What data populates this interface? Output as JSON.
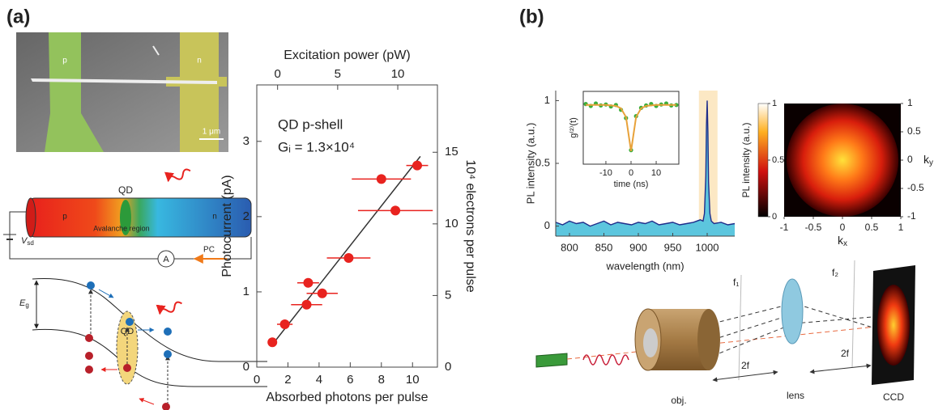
{
  "panels": {
    "a": "(a)",
    "b": "(b)"
  },
  "sem": {
    "p": "p",
    "n": "n",
    "scale": "1 μm"
  },
  "device": {
    "qd": "QD",
    "p": "p",
    "n": "n",
    "region": "Avalanche region",
    "v": "V",
    "v_sub": "sd",
    "ammeter": "A",
    "pc": "PC"
  },
  "band": {
    "e": "E",
    "e_sub": "g",
    "qd": "QD"
  },
  "optics": {
    "f1": "f₁",
    "f2": "f₂",
    "d1": "2f",
    "d2": "2f",
    "obj": "obj.",
    "lens": "lens",
    "ccd": "CCD"
  },
  "chart_data": [
    {
      "type": "scatter",
      "xlabel": "Absorbed photons per pulse",
      "x2label": "Excitation power (pW)",
      "ylabel": "Photocurrent (pA)",
      "y2label": "10⁴ electrons per pulse",
      "annotations": [
        "QD p-shell",
        "Gᵢ = 1.3×10⁴"
      ],
      "xlim": [
        0,
        11.6
      ],
      "xticks": [
        0,
        2,
        4,
        6,
        8,
        10
      ],
      "x2lim": [
        -1.73,
        13.3
      ],
      "x2ticks": [
        0,
        5,
        10
      ],
      "ylim": [
        0,
        3.75
      ],
      "yticks": [
        0,
        1,
        2,
        3
      ],
      "y2lim": [
        0,
        19.7
      ],
      "y2ticks": [
        0,
        5,
        10,
        15
      ],
      "x": [
        1.0,
        1.8,
        3.2,
        3.3,
        4.2,
        5.9,
        8.0,
        8.9,
        10.3
      ],
      "values": [
        0.33,
        0.57,
        0.83,
        1.12,
        0.98,
        1.45,
        2.5,
        2.08,
        2.68
      ],
      "xerr": [
        0.1,
        0.5,
        1.0,
        0.7,
        1.0,
        1.4,
        1.9,
        2.4,
        0.7
      ],
      "color": "#e8231f",
      "fit": {
        "x": [
          1.0,
          10.5
        ],
        "values": [
          0.3,
          2.8
        ],
        "color": "#333333"
      }
    },
    {
      "type": "line",
      "xlabel": "wavelength (nm)",
      "ylabel": "PL intensity (a.u.)",
      "xlim": [
        780,
        1040
      ],
      "xticks": [
        800,
        850,
        900,
        950,
        1000
      ],
      "ylim": [
        -0.08,
        1.08
      ],
      "yticks": [
        0,
        0.5,
        1
      ],
      "highlight": [
        988,
        1015
      ],
      "highlight_color": "#fce8c4",
      "x": [
        780,
        790,
        800,
        810,
        820,
        830,
        840,
        850,
        860,
        870,
        880,
        890,
        900,
        910,
        920,
        930,
        940,
        950,
        960,
        970,
        980,
        990,
        994,
        996,
        998,
        999,
        1000,
        1001,
        1002,
        1004,
        1006,
        1010,
        1020,
        1030,
        1040
      ],
      "series": [
        {
          "color": "#1f2d8a",
          "fill": "#5cc6de",
          "values": [
            0.03,
            0.01,
            0.04,
            0.02,
            0.03,
            0.0,
            0.02,
            0.04,
            0.01,
            0.03,
            0.02,
            0.01,
            0.03,
            0.02,
            0.04,
            0.01,
            0.02,
            0.03,
            0.01,
            0.02,
            0.03,
            0.05,
            0.04,
            0.1,
            0.4,
            0.8,
            1.0,
            0.75,
            0.35,
            0.1,
            0.04,
            0.02,
            0.03,
            0.01,
            0.02
          ]
        }
      ]
    },
    {
      "type": "line",
      "inset": true,
      "xlabel": "time (ns)",
      "ylabel": "g⁽²⁾(t)",
      "xlim": [
        -19,
        19
      ],
      "xticks": [
        -10,
        0,
        10
      ],
      "ylim": [
        -0.22,
        1.28
      ],
      "x": [
        -18,
        -16,
        -14,
        -12,
        -10,
        -8,
        -6,
        -4,
        -2,
        0,
        2,
        4,
        6,
        8,
        10,
        12,
        14,
        16,
        18
      ],
      "series": [
        {
          "color": "#3cae3c",
          "marker": true,
          "values": [
            1.02,
            0.98,
            1.03,
            0.99,
            1.01,
            0.97,
            1.0,
            0.9,
            0.73,
            0.07,
            0.77,
            0.94,
            0.99,
            1.02,
            0.98,
            1.01,
            1.03,
            0.99,
            1.0
          ]
        },
        {
          "color": "#e8a23a",
          "values": [
            1,
            1,
            1,
            1,
            1,
            0.99,
            0.98,
            0.93,
            0.75,
            0.05,
            0.75,
            0.93,
            0.98,
            0.99,
            1,
            1,
            1,
            1,
            1
          ]
        }
      ]
    },
    {
      "type": "heatmap",
      "xlabel": "k",
      "xlabel_sub": "x",
      "ylabel": "k",
      "ylabel_sub": "y",
      "xlim": [
        -1,
        1
      ],
      "xticks": [
        -1,
        -0.5,
        0,
        0.5,
        1
      ],
      "ylim": [
        -1,
        1
      ],
      "yticks": [
        -1,
        -0.5,
        0,
        0.5,
        1
      ],
      "colormap": "hot",
      "colorbar": {
        "label": "PL intensity (a.u.)",
        "lim": [
          0,
          1
        ],
        "ticks": [
          0,
          0.5,
          1
        ]
      }
    }
  ]
}
